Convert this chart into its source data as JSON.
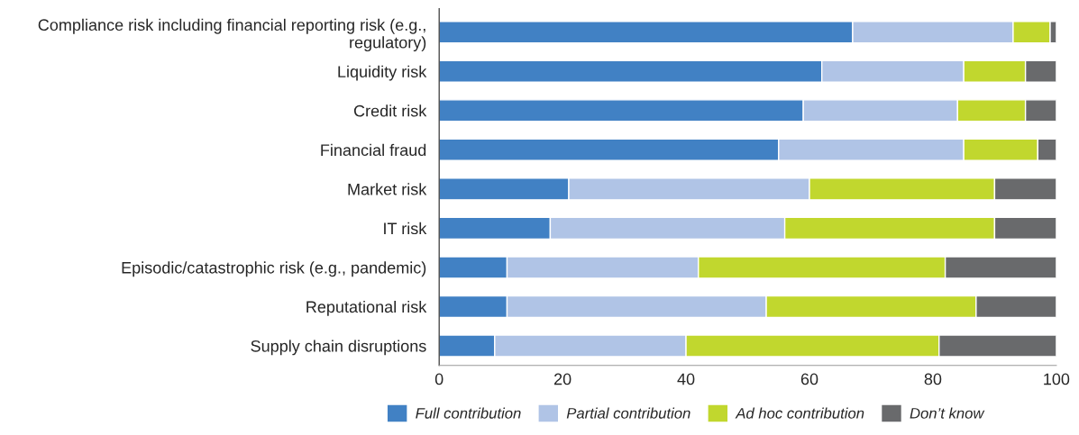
{
  "chart_data": {
    "type": "bar",
    "orientation": "horizontal",
    "stacked": true,
    "categories": [
      "Compliance risk including financial reporting risk (e.g.,\nregulatory)",
      "Liquidity risk",
      "Credit risk",
      "Financial fraud",
      "Market risk",
      "IT risk",
      "Episodic/catastrophic risk (e.g., pandemic)",
      "Reputational risk",
      "Supply chain disruptions"
    ],
    "series": [
      {
        "name": "Full contribution",
        "color": "#4181c4",
        "values": [
          67,
          62,
          59,
          55,
          21,
          18,
          11,
          11,
          9
        ]
      },
      {
        "name": "Partial contribution",
        "color": "#b0c4e6",
        "values": [
          26,
          23,
          25,
          30,
          39,
          38,
          31,
          42,
          31
        ]
      },
      {
        "name": "Ad hoc contribution",
        "color": "#c1d72e",
        "values": [
          6,
          10,
          11,
          12,
          30,
          34,
          40,
          34,
          41
        ]
      },
      {
        "name": "Don’t know",
        "color": "#696a6c",
        "values": [
          1,
          5,
          5,
          3,
          10,
          10,
          18,
          13,
          19
        ]
      }
    ],
    "xlim": [
      0,
      100
    ],
    "xticks": [
      0,
      20,
      40,
      60,
      80,
      100
    ],
    "grid": false,
    "legend": "bottom"
  }
}
